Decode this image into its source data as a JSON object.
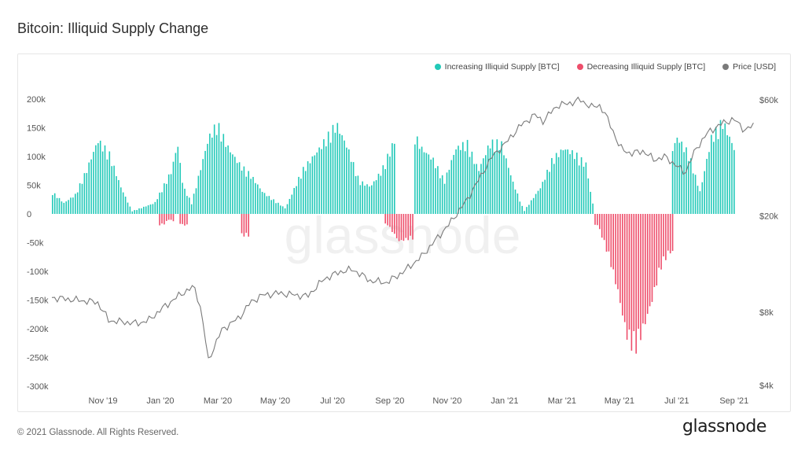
{
  "page": {
    "title": "Bitcoin: Illiquid Supply Change",
    "footer": "© 2021 Glassnode. All Rights Reserved.",
    "brand": "glassnode",
    "watermark": "glassnode"
  },
  "chart_data": {
    "type": "bar",
    "title": "Bitcoin: Illiquid Supply Change",
    "legend": [
      {
        "name": "Increasing Illiquid Supply [BTC]",
        "color": "#22c9b8"
      },
      {
        "name": "Decreasing Illiquid Supply [BTC]",
        "color": "#ee4e6b"
      },
      {
        "name": "Price [USD]",
        "color": "#7a7a7a"
      }
    ],
    "legend_position": "top-right",
    "grid": false,
    "x_ticks": [
      "Nov '19",
      "Jan '20",
      "Mar '20",
      "May '20",
      "Jul '20",
      "Sep '20",
      "Nov '20",
      "Jan '21",
      "Mar '21",
      "May '21",
      "Jul '21",
      "Sep '21"
    ],
    "y_left": {
      "ticks": [
        "200k",
        "150k",
        "100k",
        "50k",
        "0",
        "-50k",
        "-100k",
        "-150k",
        "-200k",
        "-250k",
        "-300k"
      ],
      "range": [
        -300000,
        200000
      ]
    },
    "y_right": {
      "ticks": [
        "$60k",
        "$20k",
        "$8k",
        "$4k"
      ],
      "scale": "log"
    },
    "series": [
      {
        "name": "Increasing Illiquid Supply [BTC]",
        "unit": "BTC",
        "points_by_month": [
          [
            0,
            40000
          ],
          [
            0.4,
            20000
          ],
          [
            0.8,
            35000
          ],
          [
            1.2,
            80000
          ],
          [
            1.6,
            135000
          ],
          [
            2.0,
            110000
          ],
          [
            2.4,
            50000
          ],
          [
            2.8,
            5000
          ],
          [
            3.6,
            20000
          ],
          [
            4.2,
            80000
          ],
          [
            4.4,
            130000
          ],
          [
            4.6,
            50000
          ],
          [
            4.9,
            20000
          ],
          [
            5.2,
            80000
          ],
          [
            5.5,
            140000
          ],
          [
            5.8,
            165000
          ],
          [
            6.2,
            120000
          ],
          [
            6.6,
            90000
          ],
          [
            7.0,
            70000
          ],
          [
            7.4,
            40000
          ],
          [
            8.2,
            10000
          ],
          [
            8.8,
            80000
          ],
          [
            9.4,
            120000
          ],
          [
            10.0,
            165000
          ],
          [
            10.4,
            120000
          ],
          [
            10.8,
            60000
          ],
          [
            11.2,
            50000
          ],
          [
            11.6,
            80000
          ],
          [
            12.0,
            130000
          ],
          [
            12.4,
            170000
          ],
          [
            12.7,
            150000
          ],
          [
            13.0,
            120000
          ],
          [
            13.4,
            100000
          ],
          [
            13.8,
            60000
          ],
          [
            14.2,
            120000
          ],
          [
            14.6,
            130000
          ],
          [
            15.0,
            80000
          ],
          [
            15.4,
            130000
          ],
          [
            15.8,
            130000
          ],
          [
            16.2,
            60000
          ],
          [
            16.6,
            5000
          ],
          [
            17.2,
            50000
          ],
          [
            17.6,
            100000
          ],
          [
            18.0,
            120000
          ],
          [
            18.4,
            110000
          ],
          [
            18.8,
            90000
          ],
          [
            19.0,
            20000
          ],
          [
            19.4,
            5000
          ],
          [
            20.2,
            100000
          ],
          [
            20.8,
            130000
          ],
          [
            21.2,
            110000
          ],
          [
            21.6,
            90000
          ],
          [
            22.0,
            140000
          ],
          [
            22.4,
            110000
          ],
          [
            22.8,
            40000
          ],
          [
            23.2,
            140000
          ],
          [
            23.6,
            170000
          ],
          [
            24.0,
            120000
          ]
        ]
      },
      {
        "name": "Decreasing Illiquid Supply [BTC]",
        "unit": "BTC",
        "points_by_month": [
          [
            3.9,
            -20000
          ],
          [
            4.1,
            -10000
          ],
          [
            4.6,
            -20000
          ],
          [
            6.8,
            -40000
          ],
          [
            11.8,
            -20000
          ],
          [
            12.2,
            -50000
          ],
          [
            12.6,
            -45000
          ],
          [
            19.2,
            -20000
          ],
          [
            19.6,
            -80000
          ],
          [
            19.9,
            -140000
          ],
          [
            20.2,
            -220000
          ],
          [
            20.5,
            -250000
          ],
          [
            20.8,
            -210000
          ],
          [
            21.1,
            -160000
          ],
          [
            21.4,
            -100000
          ],
          [
            21.7,
            -70000
          ]
        ]
      },
      {
        "name": "Price [USD]",
        "unit": "USD",
        "points_by_month": [
          [
            0,
            9200
          ],
          [
            0.8,
            9000
          ],
          [
            1.6,
            8800
          ],
          [
            2.0,
            7400
          ],
          [
            3.0,
            7200
          ],
          [
            3.4,
            7400
          ],
          [
            4.0,
            8500
          ],
          [
            4.6,
            9600
          ],
          [
            5.0,
            10200
          ],
          [
            5.2,
            8700
          ],
          [
            5.5,
            5000
          ],
          [
            6.0,
            6800
          ],
          [
            6.6,
            7600
          ],
          [
            7.0,
            8800
          ],
          [
            7.4,
            9400
          ],
          [
            8.0,
            9600
          ],
          [
            9.0,
            9300
          ],
          [
            9.6,
            11000
          ],
          [
            10.2,
            11800
          ],
          [
            10.6,
            12000
          ],
          [
            11.2,
            10800
          ],
          [
            11.8,
            10600
          ],
          [
            12.4,
            11800
          ],
          [
            13.0,
            13500
          ],
          [
            13.5,
            15800
          ],
          [
            14.0,
            18500
          ],
          [
            14.6,
            23000
          ],
          [
            15.1,
            29000
          ],
          [
            15.5,
            35000
          ],
          [
            16.0,
            40000
          ],
          [
            16.5,
            47000
          ],
          [
            17.0,
            52000
          ],
          [
            17.3,
            49000
          ],
          [
            17.8,
            57000
          ],
          [
            18.2,
            58000
          ],
          [
            18.6,
            60000
          ],
          [
            19.0,
            56000
          ],
          [
            19.3,
            57000
          ],
          [
            19.6,
            49000
          ],
          [
            20.0,
            38000
          ],
          [
            20.4,
            36000
          ],
          [
            20.8,
            37000
          ],
          [
            21.2,
            34000
          ],
          [
            21.6,
            35000
          ],
          [
            22.0,
            32000
          ],
          [
            22.3,
            30000
          ],
          [
            22.7,
            38000
          ],
          [
            23.1,
            44000
          ],
          [
            23.6,
            48000
          ],
          [
            24.0,
            50000
          ],
          [
            24.4,
            45000
          ],
          [
            24.7,
            47000
          ]
        ]
      }
    ]
  }
}
